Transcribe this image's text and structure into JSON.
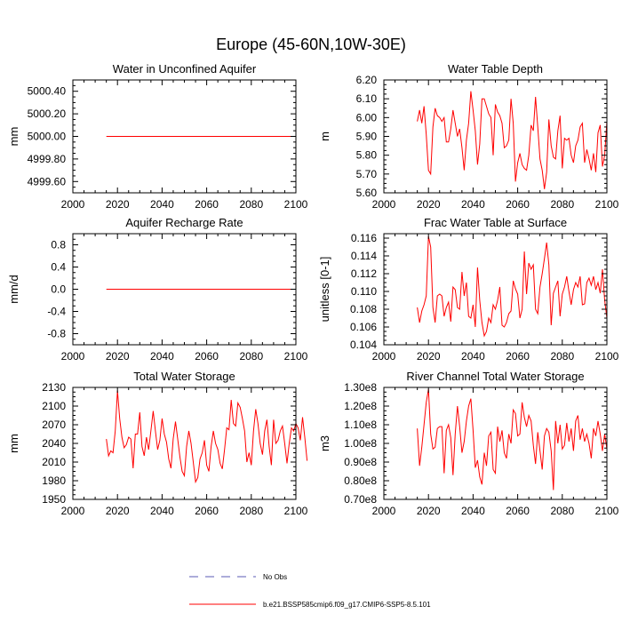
{
  "figure_title": "Europe (45-60N,10W-30E)",
  "colors": {
    "model_line": "#ff0000",
    "obs_line": "#5a5ab4",
    "axes": "#000000"
  },
  "legend": {
    "obs_label": "No Obs",
    "model_label": "b.e21.BSSP585cmip6.f09_g17.CMIP6-SSP5-8.5.101"
  },
  "chart_data": [
    {
      "type": "line",
      "title": "Water in Unconfined Aquifer",
      "xlabel": "",
      "ylabel": "mm",
      "xlim": [
        2000,
        2100
      ],
      "ylim": [
        4999.5,
        5000.5
      ],
      "xticks": [
        2000,
        2020,
        2040,
        2060,
        2080,
        2100
      ],
      "xtick_labels": [
        "2000",
        "2020",
        "2040",
        "2060",
        "2080",
        "2100"
      ],
      "yticks": [
        4999.6,
        4999.8,
        5000.0,
        5000.2,
        5000.4
      ],
      "ytick_labels": [
        "4999.60",
        "4999.80",
        "5000.00",
        "5000.20",
        "5000.40"
      ],
      "x_start": 2015,
      "x_step": 1,
      "series": [
        {
          "name": "b.e21.BSSP585cmip6.f09_g17.CMIP6-SSP5-8.5.101",
          "values": "constant:5000.0:86"
        }
      ]
    },
    {
      "type": "line",
      "title": "Water Table Depth",
      "xlabel": "",
      "ylabel": "m",
      "xlim": [
        2000,
        2100
      ],
      "ylim": [
        5.6,
        6.2
      ],
      "xticks": [
        2000,
        2020,
        2040,
        2060,
        2080,
        2100
      ],
      "xtick_labels": [
        "2000",
        "2020",
        "2040",
        "2060",
        "2080",
        "2100"
      ],
      "yticks": [
        5.6,
        5.7,
        5.8,
        5.9,
        6.0,
        6.1,
        6.2
      ],
      "ytick_labels": [
        "5.60",
        "5.70",
        "5.80",
        "5.90",
        "6.00",
        "6.10",
        "6.20"
      ],
      "x_start": 2015,
      "x_step": 1,
      "series": [
        {
          "name": "b.e21.BSSP585cmip6.f09_g17.CMIP6-SSP5-8.5.101",
          "values": [
            5.98,
            6.04,
            5.97,
            6.06,
            5.91,
            5.72,
            5.7,
            5.95,
            6.05,
            6.01,
            6.0,
            5.98,
            6.0,
            5.87,
            5.87,
            5.94,
            6.04,
            5.97,
            5.9,
            5.94,
            5.84,
            5.72,
            5.88,
            5.97,
            6.14,
            6.04,
            5.93,
            5.75,
            5.86,
            6.1,
            6.1,
            6.06,
            6.02,
            6.0,
            5.8,
            6.07,
            6.03,
            6.01,
            5.97,
            5.84,
            5.85,
            5.88,
            6.1,
            5.97,
            5.66,
            5.76,
            5.81,
            5.75,
            5.73,
            5.72,
            5.8,
            5.96,
            5.93,
            6.11,
            5.95,
            5.78,
            5.72,
            5.62,
            5.71,
            5.99,
            5.85,
            5.79,
            5.78,
            5.93,
            6.01,
            5.73,
            5.89,
            5.88,
            5.89,
            5.8,
            5.76,
            5.85,
            5.88,
            5.95,
            5.97,
            5.76,
            5.83,
            5.78,
            5.72,
            5.81,
            5.71,
            5.92,
            5.96,
            5.74,
            5.8,
            5.98
          ]
        }
      ]
    },
    {
      "type": "line",
      "title": "Aquifer Recharge Rate",
      "xlabel": "",
      "ylabel": "mm/d",
      "xlim": [
        2000,
        2100
      ],
      "ylim": [
        -1.0,
        1.0
      ],
      "xticks": [
        2000,
        2020,
        2040,
        2060,
        2080,
        2100
      ],
      "xtick_labels": [
        "2000",
        "2020",
        "2040",
        "2060",
        "2080",
        "2100"
      ],
      "yticks": [
        -0.8,
        -0.4,
        0.0,
        0.4,
        0.8
      ],
      "ytick_labels": [
        "-0.8",
        "-0.4",
        "0.0",
        "0.4",
        "0.8"
      ],
      "x_start": 2015,
      "x_step": 1,
      "series": [
        {
          "name": "b.e21.BSSP585cmip6.f09_g17.CMIP6-SSP5-8.5.101",
          "values": "constant:0.0:86"
        }
      ]
    },
    {
      "type": "line",
      "title": "Frac Water Table at Surface",
      "xlabel": "",
      "ylabel": "unitless [0-1]",
      "xlim": [
        2000,
        2100
      ],
      "ylim": [
        0.104,
        0.1165
      ],
      "xticks": [
        2000,
        2020,
        2040,
        2060,
        2080,
        2100
      ],
      "xtick_labels": [
        "2000",
        "2020",
        "2040",
        "2060",
        "2080",
        "2100"
      ],
      "yticks": [
        0.104,
        0.106,
        0.108,
        0.11,
        0.112,
        0.114,
        0.116
      ],
      "ytick_labels": [
        "0.104",
        "0.106",
        "0.108",
        "0.110",
        "0.112",
        "0.114",
        "0.116"
      ],
      "x_start": 2015,
      "x_step": 1,
      "series": [
        {
          "name": "b.e21.BSSP585cmip6.f09_g17.CMIP6-SSP5-8.5.101",
          "values": [
            0.1082,
            0.1065,
            0.1078,
            0.1085,
            0.1095,
            0.1162,
            0.115,
            0.1082,
            0.1065,
            0.1095,
            0.1097,
            0.1095,
            0.1072,
            0.1082,
            0.1088,
            0.1066,
            0.1105,
            0.1102,
            0.1082,
            0.108,
            0.1122,
            0.1095,
            0.111,
            0.1072,
            0.107,
            0.1085,
            0.106,
            0.1127,
            0.109,
            0.1065,
            0.105,
            0.1055,
            0.107,
            0.1065,
            0.1085,
            0.108,
            0.109,
            0.1105,
            0.1062,
            0.106,
            0.1065,
            0.1075,
            0.1078,
            0.1112,
            0.1103,
            0.1097,
            0.107,
            0.108,
            0.1145,
            0.1097,
            0.1132,
            0.1125,
            0.113,
            0.108,
            0.1075,
            0.1105,
            0.112,
            0.1137,
            0.1155,
            0.113,
            0.1062,
            0.1098,
            0.1105,
            0.1112,
            0.1072,
            0.1097,
            0.1105,
            0.1117,
            0.11,
            0.1085,
            0.1102,
            0.111,
            0.1105,
            0.1117,
            0.1085,
            0.1086,
            0.111,
            0.1115,
            0.1107,
            0.1117,
            0.1102,
            0.111,
            0.1098,
            0.1125,
            0.109,
            0.107
          ]
        }
      ]
    },
    {
      "type": "line",
      "title": "Total Water Storage",
      "xlabel": "",
      "ylabel": "mm",
      "xlim": [
        2000,
        2100
      ],
      "ylim": [
        1950,
        2130
      ],
      "xticks": [
        2000,
        2020,
        2040,
        2060,
        2080,
        2100
      ],
      "xtick_labels": [
        "2000",
        "2020",
        "2040",
        "2060",
        "2080",
        "2100"
      ],
      "yticks": [
        1950,
        1980,
        2010,
        2040,
        2070,
        2100,
        2130
      ],
      "ytick_labels": [
        "1950",
        "1980",
        "2010",
        "2040",
        "2070",
        "2100",
        "2130"
      ],
      "x_start": 2015,
      "x_step": 1,
      "series": [
        {
          "name": "b.e21.BSSP585cmip6.f09_g17.CMIP6-SSP5-8.5.101",
          "values": [
            2047,
            2020,
            2028,
            2025,
            2060,
            2125,
            2080,
            2050,
            2033,
            2038,
            2050,
            2047,
            2000,
            2055,
            2055,
            2090,
            2035,
            2020,
            2050,
            2030,
            2060,
            2092,
            2060,
            2030,
            2045,
            2080,
            2055,
            2042,
            2015,
            2000,
            2047,
            2075,
            2047,
            2018,
            1995,
            1988,
            2035,
            2060,
            2040,
            2010,
            1978,
            1985,
            2015,
            2025,
            2045,
            2005,
            1995,
            2035,
            2060,
            2040,
            2030,
            2008,
            1999,
            2030,
            2065,
            2062,
            2110,
            2072,
            2068,
            2105,
            2098,
            2080,
            2060,
            2010,
            2025,
            2005,
            2060,
            2095,
            2072,
            2040,
            2022,
            2060,
            2078,
            2035,
            2005,
            2078,
            2040,
            2045,
            2060,
            2068,
            2040,
            2008,
            2040,
            2065,
            2060,
            2072,
            2065,
            2045,
            2082,
            2050,
            2012
          ]
        }
      ]
    },
    {
      "type": "line",
      "title": "River Channel Total Water Storage",
      "xlabel": "",
      "ylabel": "m3",
      "xlim": [
        2000,
        2100
      ],
      "ylim": [
        70000000.0,
        130000000.0
      ],
      "xticks": [
        2000,
        2020,
        2040,
        2060,
        2080,
        2100
      ],
      "xtick_labels": [
        "2000",
        "2020",
        "2040",
        "2060",
        "2080",
        "2100"
      ],
      "yticks": [
        70000000.0,
        80000000.0,
        90000000.0,
        100000000.0,
        110000000.0,
        120000000.0,
        130000000.0
      ],
      "ytick_labels": [
        "0.70e8",
        "0.80e8",
        "0.90e8",
        "1.00e8",
        "1.10e8",
        "1.20e8",
        "1.30e8"
      ],
      "x_start": 2015,
      "x_step": 1,
      "series": [
        {
          "name": "b.e21.BSSP585cmip6.f09_g17.CMIP6-SSP5-8.5.101",
          "values": [
            108000000.0,
            88000000.0,
            98000000.0,
            110000000.0,
            122000000.0,
            129000000.0,
            105000000.0,
            97000000.0,
            98000000.0,
            108000000.0,
            109000000.0,
            109000000.0,
            84000000.0,
            107000000.0,
            110000000.0,
            103000000.0,
            83000000.0,
            105000000.0,
            120000000.0,
            109000000.0,
            95000000.0,
            101000000.0,
            112000000.0,
            120000000.0,
            124000000.0,
            107000000.0,
            87000000.0,
            91000000.0,
            82000000.0,
            78000000.0,
            95000000.0,
            88000000.0,
            104000000.0,
            106000000.0,
            86000000.0,
            84000000.0,
            109000000.0,
            101000000.0,
            107000000.0,
            95000000.0,
            92000000.0,
            105000000.0,
            100000000.0,
            118000000.0,
            116000000.0,
            104000000.0,
            105000000.0,
            122000000.0,
            114000000.0,
            109000000.0,
            115000000.0,
            112000000.0,
            99000000.0,
            89000000.0,
            106000000.0,
            96000000.0,
            86000000.0,
            104000000.0,
            108000000.0,
            106000000.0,
            96000000.0,
            75000000.0,
            112000000.0,
            100000000.0,
            110000000.0,
            97000000.0,
            99000000.0,
            111000000.0,
            101000000.0,
            108000000.0,
            96000000.0,
            112000000.0,
            115000000.0,
            102000000.0,
            108000000.0,
            101000000.0,
            105000000.0,
            100000000.0,
            92000000.0,
            108000000.0,
            104000000.0,
            112000000.0,
            105000000.0,
            96000000.0,
            105000000.0,
            97000000.0
          ]
        }
      ]
    }
  ]
}
